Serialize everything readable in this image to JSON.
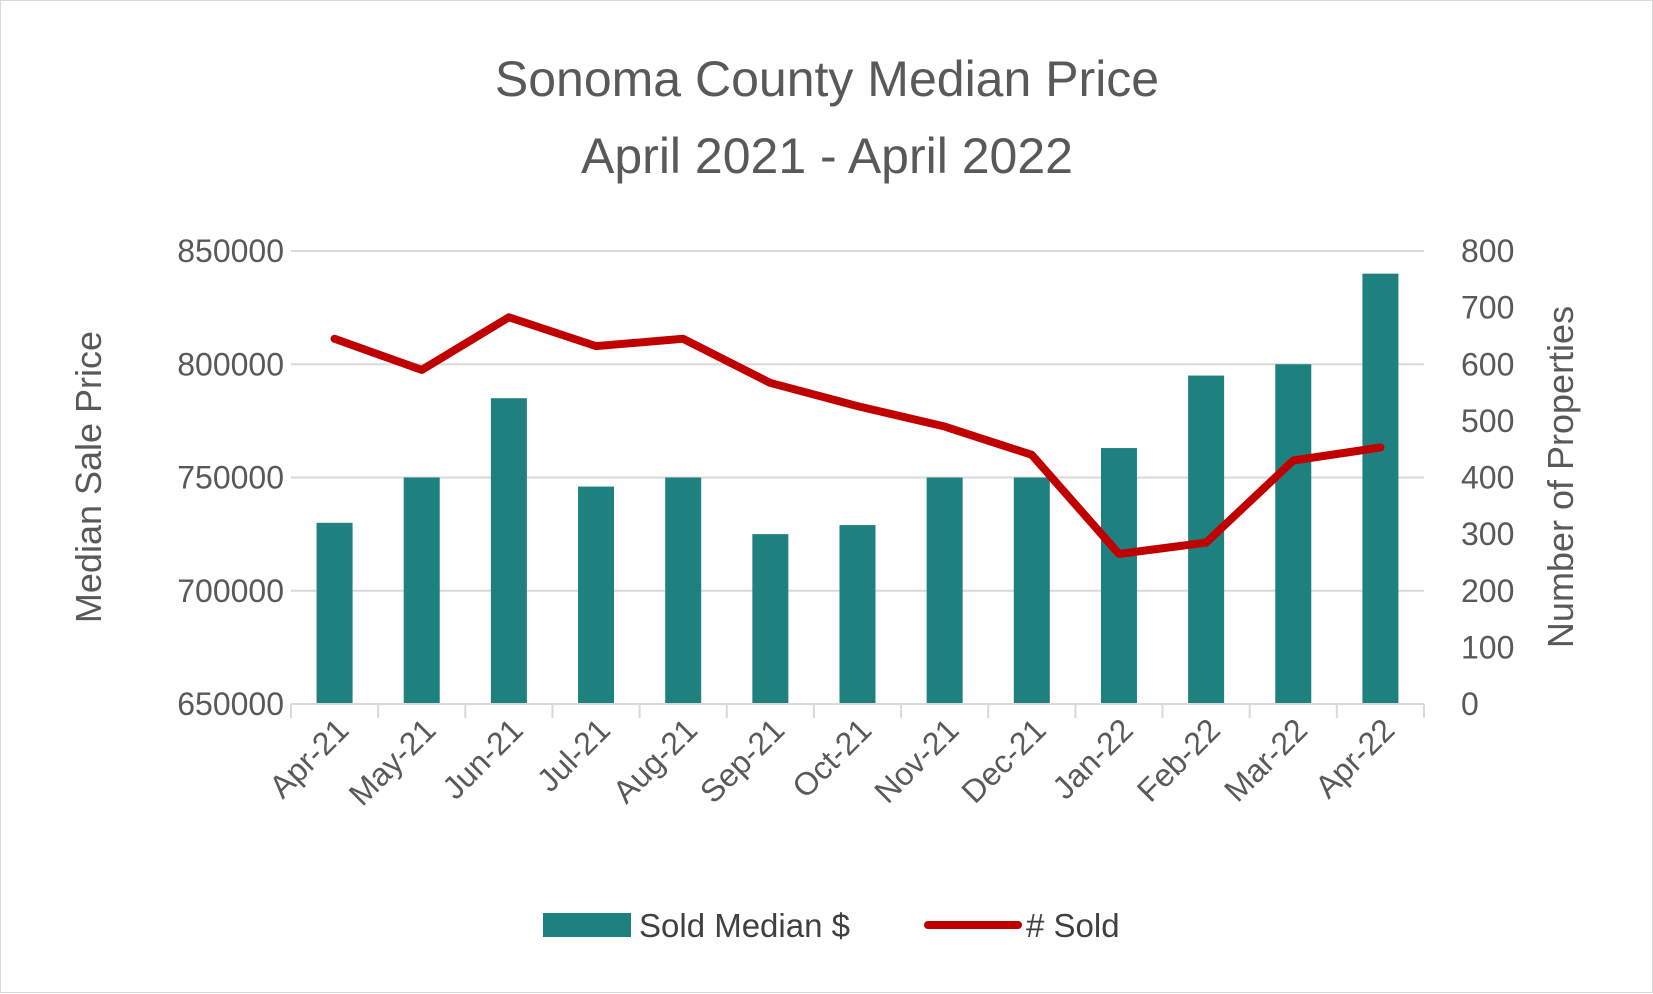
{
  "chart_data": {
    "type": "bar",
    "title": "Sonoma County Median Price",
    "subtitle": "April 2021 - April 2022",
    "categories": [
      "Apr-21",
      "May-21",
      "Jun-21",
      "Jul-21",
      "Aug-21",
      "Sep-21",
      "Oct-21",
      "Nov-21",
      "Dec-21",
      "Jan-22",
      "Feb-22",
      "Mar-22",
      "Apr-22"
    ],
    "series": [
      {
        "name": "Sold Median $",
        "type": "bar",
        "axis": "left",
        "color": "#1f8080",
        "values": [
          730000,
          750000,
          785000,
          746000,
          750000,
          725000,
          729000,
          750000,
          750000,
          763000,
          795000,
          800000,
          840000
        ]
      },
      {
        "name": "# Sold",
        "type": "line",
        "axis": "right",
        "color": "#c00000",
        "values": [
          645,
          590,
          683,
          632,
          645,
          567,
          526,
          490,
          440,
          265,
          285,
          430,
          453
        ]
      }
    ],
    "ylabel": "Median Sale Price",
    "ylim": [
      650000,
      850000
    ],
    "yticks": [
      650000,
      700000,
      750000,
      800000,
      850000
    ],
    "y2label": "Number of Properties",
    "y2lim": [
      0,
      800
    ],
    "y2ticks": [
      0,
      100,
      200,
      300,
      400,
      500,
      600,
      700,
      800
    ],
    "grid": true,
    "legend": "bottom"
  }
}
